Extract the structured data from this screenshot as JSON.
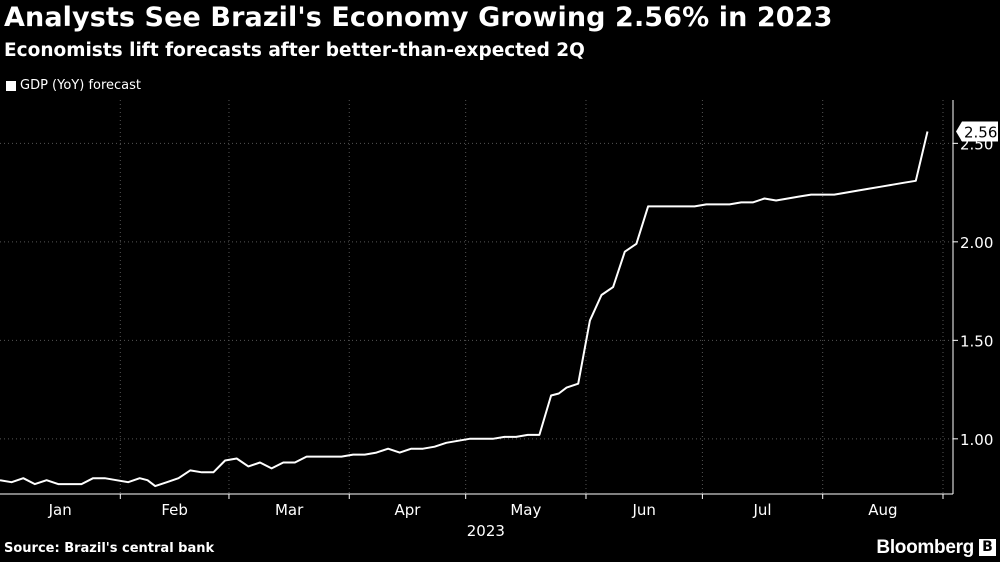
{
  "title": "Analysts See Brazil's Economy Growing 2.56% in 2023",
  "subtitle": "Economists lift forecasts after better-than-expected 2Q",
  "source": "Source: Brazil's central bank",
  "brand": "Bloomberg",
  "colors": {
    "background": "#000000",
    "line": "#ffffff",
    "grid": "#555555",
    "text": "#ffffff"
  },
  "chart_data": {
    "type": "line",
    "title": "Analysts See Brazil's Economy Growing 2.56% in 2023",
    "xlabel": "2023",
    "ylabel": "",
    "ylim": [
      0.72,
      2.72
    ],
    "yticks": [
      1.0,
      1.5,
      2.0,
      2.5
    ],
    "ytick_labels": [
      "1.00",
      "1.50",
      "2.00",
      "2.50"
    ],
    "xticks": [
      "Jan",
      "Feb",
      "Mar",
      "Apr",
      "May",
      "Jun",
      "Jul",
      "Aug"
    ],
    "year_label": "2023",
    "grid": true,
    "legend": "top-left",
    "last_value_label": "2.56",
    "series": [
      {
        "name": "GDP (YoY) forecast",
        "x": [
          "2023-01-01",
          "2023-01-04",
          "2023-01-07",
          "2023-01-10",
          "2023-01-13",
          "2023-01-16",
          "2023-01-19",
          "2023-01-22",
          "2023-01-25",
          "2023-01-28",
          "2023-01-31",
          "2023-02-03",
          "2023-02-06",
          "2023-02-08",
          "2023-02-10",
          "2023-02-13",
          "2023-02-16",
          "2023-02-19",
          "2023-02-22",
          "2023-02-25",
          "2023-02-28",
          "2023-03-03",
          "2023-03-06",
          "2023-03-09",
          "2023-03-12",
          "2023-03-15",
          "2023-03-18",
          "2023-03-21",
          "2023-03-24",
          "2023-03-27",
          "2023-03-30",
          "2023-04-02",
          "2023-04-05",
          "2023-04-08",
          "2023-04-11",
          "2023-04-14",
          "2023-04-17",
          "2023-04-20",
          "2023-04-23",
          "2023-04-26",
          "2023-04-29",
          "2023-05-02",
          "2023-05-05",
          "2023-05-08",
          "2023-05-11",
          "2023-05-14",
          "2023-05-17",
          "2023-05-20",
          "2023-05-23",
          "2023-05-25",
          "2023-05-27",
          "2023-05-30",
          "2023-06-02",
          "2023-06-05",
          "2023-06-08",
          "2023-06-11",
          "2023-06-14",
          "2023-06-17",
          "2023-06-20",
          "2023-06-23",
          "2023-06-26",
          "2023-06-29",
          "2023-07-02",
          "2023-07-05",
          "2023-07-08",
          "2023-07-11",
          "2023-07-14",
          "2023-07-17",
          "2023-07-20",
          "2023-07-23",
          "2023-07-26",
          "2023-07-29",
          "2023-08-01",
          "2023-08-04",
          "2023-08-07",
          "2023-08-10",
          "2023-08-13",
          "2023-08-16",
          "2023-08-19",
          "2023-08-22",
          "2023-08-25",
          "2023-08-28"
        ],
        "y": [
          0.79,
          0.78,
          0.8,
          0.77,
          0.79,
          0.77,
          0.77,
          0.77,
          0.8,
          0.8,
          0.79,
          0.78,
          0.8,
          0.79,
          0.76,
          0.78,
          0.8,
          0.84,
          0.83,
          0.83,
          0.89,
          0.9,
          0.86,
          0.88,
          0.85,
          0.88,
          0.88,
          0.91,
          0.91,
          0.91,
          0.91,
          0.92,
          0.92,
          0.93,
          0.95,
          0.93,
          0.95,
          0.95,
          0.96,
          0.98,
          0.99,
          1.0,
          1.0,
          1.0,
          1.01,
          1.01,
          1.02,
          1.02,
          1.22,
          1.23,
          1.26,
          1.28,
          1.6,
          1.73,
          1.77,
          1.95,
          1.99,
          2.18,
          2.18,
          2.18,
          2.18,
          2.18,
          2.19,
          2.19,
          2.19,
          2.2,
          2.2,
          2.22,
          2.21,
          2.22,
          2.23,
          2.24,
          2.24,
          2.24,
          2.25,
          2.26,
          2.27,
          2.28,
          2.29,
          2.3,
          2.31,
          2.56
        ]
      }
    ]
  }
}
